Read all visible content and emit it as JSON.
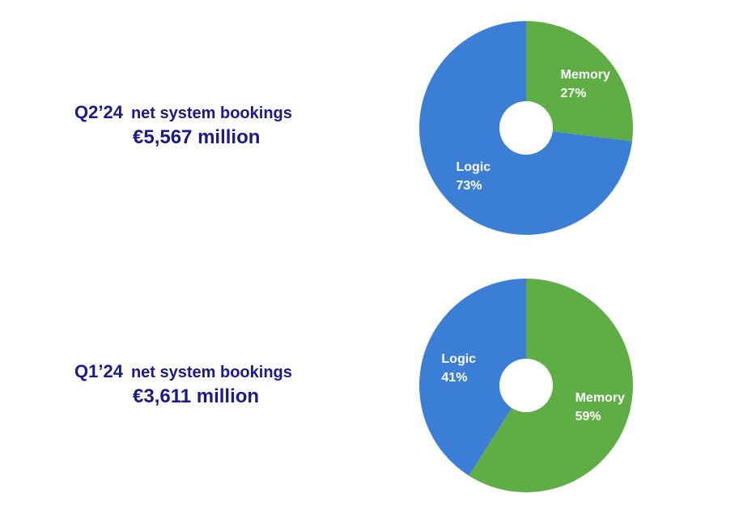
{
  "chart_data": [
    {
      "type": "pie",
      "quarter": "Q2’24",
      "description": "net system bookings",
      "amount": "€5,567 million",
      "slices": [
        {
          "label": "Memory",
          "pct_label": "27%",
          "value": 27,
          "color": "#5fae45"
        },
        {
          "label": "Logic",
          "pct_label": "73%",
          "value": 73,
          "color": "#3a7fd5"
        }
      ]
    },
    {
      "type": "pie",
      "quarter": "Q1’24",
      "description": "net system bookings",
      "amount": "€3,611 million",
      "slices": [
        {
          "label": "Memory",
          "pct_label": "59%",
          "value": 59,
          "color": "#5fae45"
        },
        {
          "label": "Logic",
          "pct_label": "41%",
          "value": 41,
          "color": "#3a7fd5"
        }
      ]
    }
  ],
  "colors": {
    "heading": "#1a1a8c",
    "memory": "#5fae45",
    "logic": "#3a7fd5",
    "background": "#ffffff"
  }
}
